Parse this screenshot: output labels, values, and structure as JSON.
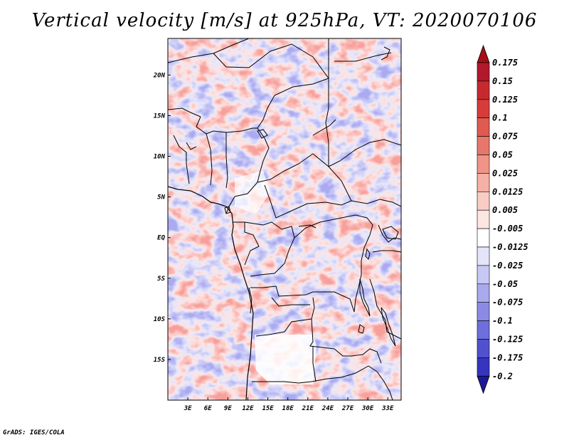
{
  "title": "Vertical velocity [m/s] at 925hPa, VT: 2020070106",
  "credit": "GrADS: IGES/COLA",
  "map": {
    "lon_range": [
      0,
      35
    ],
    "lat_range": [
      -20,
      24.5
    ],
    "lon_ticks": [
      {
        "value": 3,
        "label": "3E"
      },
      {
        "value": 6,
        "label": "6E"
      },
      {
        "value": 9,
        "label": "9E"
      },
      {
        "value": 12,
        "label": "12E"
      },
      {
        "value": 15,
        "label": "15E"
      },
      {
        "value": 18,
        "label": "18E"
      },
      {
        "value": 21,
        "label": "21E"
      },
      {
        "value": 24,
        "label": "24E"
      },
      {
        "value": 27,
        "label": "27E"
      },
      {
        "value": 30,
        "label": "30E"
      },
      {
        "value": 33,
        "label": "33E"
      }
    ],
    "lat_ticks": [
      {
        "value": 20,
        "label": "20N"
      },
      {
        "value": 15,
        "label": "15N"
      },
      {
        "value": 10,
        "label": "10N"
      },
      {
        "value": 5,
        "label": "5N"
      },
      {
        "value": 0,
        "label": "EQ"
      },
      {
        "value": -5,
        "label": "5S"
      },
      {
        "value": -10,
        "label": "10S"
      },
      {
        "value": -15,
        "label": "15S"
      }
    ]
  },
  "colorbar": {
    "levels": [
      {
        "label": "0.175",
        "color": "#b2182b"
      },
      {
        "label": "0.15",
        "color": "#c62a2e"
      },
      {
        "label": "0.125",
        "color": "#d73c3a"
      },
      {
        "label": "0.1",
        "color": "#e05a52"
      },
      {
        "label": "0.075",
        "color": "#e8776b"
      },
      {
        "label": "0.05",
        "color": "#ef9486"
      },
      {
        "label": "0.025",
        "color": "#f5b1a5"
      },
      {
        "label": "0.0125",
        "color": "#f9cdc4"
      },
      {
        "label": "0.005",
        "color": "#fde6e1"
      },
      {
        "label": "-0.005",
        "color": "#ffffff"
      },
      {
        "label": "-0.0125",
        "color": "#e4e4fb"
      },
      {
        "label": "-0.025",
        "color": "#c8c8f5"
      },
      {
        "label": "-0.05",
        "color": "#a9a9ee"
      },
      {
        "label": "-0.075",
        "color": "#8b8be6"
      },
      {
        "label": "-0.1",
        "color": "#6e6edc"
      },
      {
        "label": "-0.125",
        "color": "#5151cf"
      },
      {
        "label": "-0.175",
        "color": "#3535bf"
      },
      {
        "label": "-0.2",
        "color": "#1f1fa8"
      }
    ],
    "top_color": "#a50f15",
    "bottom_color": "#1a1a99"
  }
}
